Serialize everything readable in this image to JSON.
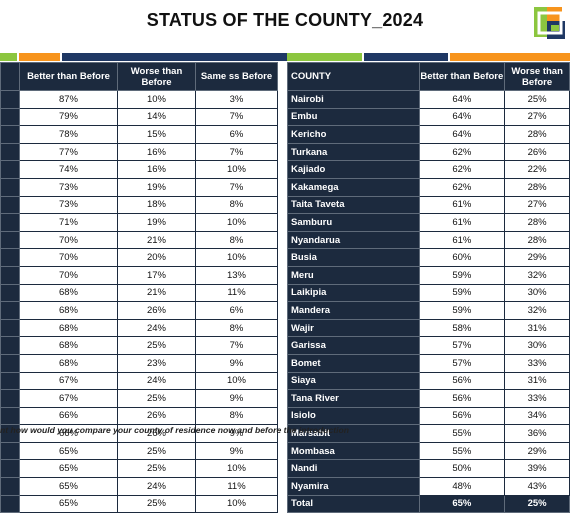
{
  "title": "STATUS OF THE COUNTY_2024",
  "colors": {
    "header_bg": "#1c2a3e",
    "green": "#8cc63f",
    "orange": "#f7941d",
    "navy": "#1f3864"
  },
  "left_table": {
    "headers": [
      "",
      "Better than Before",
      "Worse than Before",
      "Same ss Before"
    ],
    "rows": [
      [
        "87%",
        "10%",
        "3%"
      ],
      [
        "79%",
        "14%",
        "7%"
      ],
      [
        "78%",
        "15%",
        "6%"
      ],
      [
        "77%",
        "16%",
        "7%"
      ],
      [
        "74%",
        "16%",
        "10%"
      ],
      [
        "73%",
        "19%",
        "7%"
      ],
      [
        "73%",
        "18%",
        "8%"
      ],
      [
        "71%",
        "19%",
        "10%"
      ],
      [
        "70%",
        "21%",
        "8%"
      ],
      [
        "70%",
        "20%",
        "10%"
      ],
      [
        "70%",
        "17%",
        "13%"
      ],
      [
        "68%",
        "21%",
        "11%"
      ],
      [
        "68%",
        "26%",
        "6%"
      ],
      [
        "68%",
        "24%",
        "8%"
      ],
      [
        "68%",
        "25%",
        "7%"
      ],
      [
        "68%",
        "23%",
        "9%"
      ],
      [
        "67%",
        "24%",
        "10%"
      ],
      [
        "67%",
        "25%",
        "9%"
      ],
      [
        "66%",
        "26%",
        "8%"
      ],
      [
        "66%",
        "26%",
        "9%"
      ],
      [
        "65%",
        "25%",
        "9%"
      ],
      [
        "65%",
        "25%",
        "10%"
      ],
      [
        "65%",
        "24%",
        "11%"
      ],
      [
        "65%",
        "25%",
        "10%"
      ]
    ]
  },
  "right_table": {
    "headers": [
      "COUNTY",
      "Better than Before",
      "Worse than Before"
    ],
    "rows": [
      [
        "Nairobi",
        "64%",
        "25%"
      ],
      [
        "Embu",
        "64%",
        "27%"
      ],
      [
        "Kericho",
        "64%",
        "28%"
      ],
      [
        "Turkana",
        "62%",
        "26%"
      ],
      [
        "Kajiado",
        "62%",
        "22%"
      ],
      [
        "Kakamega",
        "62%",
        "28%"
      ],
      [
        "Taita Taveta",
        "61%",
        "27%"
      ],
      [
        "Samburu",
        "61%",
        "28%"
      ],
      [
        "Nyandarua",
        "61%",
        "28%"
      ],
      [
        "Busia",
        "60%",
        "29%"
      ],
      [
        "Meru",
        "59%",
        "32%"
      ],
      [
        "Laikipia",
        "59%",
        "30%"
      ],
      [
        "Mandera",
        "59%",
        "32%"
      ],
      [
        "Wajir",
        "58%",
        "31%"
      ],
      [
        "Garissa",
        "57%",
        "30%"
      ],
      [
        "Bomet",
        "57%",
        "33%"
      ],
      [
        "Siaya",
        "56%",
        "31%"
      ],
      [
        "Tana River",
        "56%",
        "33%"
      ],
      [
        "Isiolo",
        "56%",
        "34%"
      ],
      [
        "Marsabit",
        "55%",
        "36%"
      ],
      [
        "Mombasa",
        "55%",
        "29%"
      ],
      [
        "Nandi",
        "50%",
        "39%"
      ],
      [
        "Nyamira",
        "48%",
        "43%"
      ]
    ],
    "total": [
      "Total",
      "65%",
      "25%"
    ]
  },
  "footnote": "nt  how would you compare your county of residence now and before the introduction"
}
